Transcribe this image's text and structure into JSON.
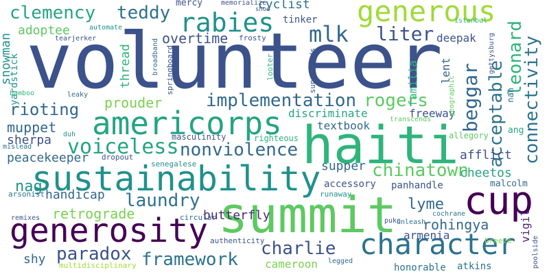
{
  "words": [
    {
      "text": "volunteer",
      "color": "#3b528b"
    },
    {
      "text": "haiti",
      "color": "#2fb47c"
    },
    {
      "text": "summit",
      "color": "#5ec962"
    },
    {
      "text": "sustainability",
      "color": "#21918c"
    },
    {
      "text": "cup",
      "color": "#440154"
    },
    {
      "text": "generosity",
      "color": "#440154"
    },
    {
      "text": "americorps",
      "color": "#26a484"
    },
    {
      "text": "character",
      "color": "#2c728e"
    },
    {
      "text": "generous",
      "color": "#a0da39"
    },
    {
      "text": "rabies",
      "color": "#21918c"
    },
    {
      "text": "mlk",
      "color": "#31688e"
    },
    {
      "text": "voiceless",
      "color": "#26a484"
    },
    {
      "text": "nonviolence",
      "color": "#31688e"
    },
    {
      "text": "liter",
      "color": "#3b528b"
    },
    {
      "text": "implementation",
      "color": "#31688e"
    },
    {
      "text": "rogers",
      "color": "#5ec962"
    },
    {
      "text": "beggar",
      "color": "#31688e"
    },
    {
      "text": "acceptable",
      "color": "#2c728e"
    },
    {
      "text": "leonard",
      "color": "#2fb47c"
    },
    {
      "text": "connectivity",
      "color": "#2c728e"
    },
    {
      "text": "chinatown",
      "color": "#5ec962"
    },
    {
      "text": "laundry",
      "color": "#2c728e"
    },
    {
      "text": "framework",
      "color": "#2c728e"
    },
    {
      "text": "paradox",
      "color": "#3b528b"
    },
    {
      "text": "charlie",
      "color": "#3b528b"
    },
    {
      "text": "clemency",
      "color": "#26a484"
    },
    {
      "text": "teddy",
      "color": "#2c728e"
    },
    {
      "text": "rioting",
      "color": "#31688e"
    },
    {
      "text": "lyme",
      "color": "#31688e"
    },
    {
      "text": "rohingya",
      "color": "#31688e"
    },
    {
      "text": "muppet",
      "color": "#31688e"
    },
    {
      "text": "overtime",
      "color": "#3b528b"
    },
    {
      "text": "nag",
      "color": "#21918c"
    },
    {
      "text": "retrograde",
      "color": "#7ad151"
    },
    {
      "text": "prouder",
      "color": "#7ad151"
    },
    {
      "text": "cheetos",
      "color": "#26a484"
    },
    {
      "text": "afflict",
      "color": "#3b528b"
    },
    {
      "text": "adoptee",
      "color": "#5ec962"
    },
    {
      "text": "cyclist",
      "color": "#2c728e"
    },
    {
      "text": "supper",
      "color": "#31688e"
    },
    {
      "text": "peacekeeper",
      "color": "#31688e"
    },
    {
      "text": "sherpa",
      "color": "#3b528b"
    },
    {
      "text": "butterfly",
      "color": "#482878"
    },
    {
      "text": "handicap",
      "color": "#31688e"
    },
    {
      "text": "shy",
      "color": "#31688e"
    },
    {
      "text": "armenia",
      "color": "#3b528b"
    },
    {
      "text": "snowman",
      "color": "#21918c"
    },
    {
      "text": "discriminate",
      "color": "#26a484"
    },
    {
      "text": "textbook",
      "color": "#31688e"
    },
    {
      "text": "freeway",
      "color": "#3b528b"
    },
    {
      "text": "deepak",
      "color": "#3b528b"
    },
    {
      "text": "thread",
      "color": "#2fb47c"
    },
    {
      "text": "lent",
      "color": "#31688e"
    },
    {
      "text": "familia",
      "color": "#2fb47c"
    },
    {
      "text": "accessory",
      "color": "#3b528b"
    },
    {
      "text": "panhandle",
      "color": "#3b528b"
    },
    {
      "text": "cameroon",
      "color": "#7ad151"
    },
    {
      "text": "vigil",
      "color": "#482878"
    },
    {
      "text": "honorable",
      "color": "#2c728e"
    },
    {
      "text": "atkins",
      "color": "#2c728e"
    },
    {
      "text": "malcolm",
      "color": "#31688e"
    },
    {
      "text": "ang",
      "color": "#26a484"
    },
    {
      "text": "tinker",
      "color": "#3b528b"
    },
    {
      "text": "mercy",
      "color": "#3b528b"
    },
    {
      "text": "yardstick",
      "color": "#21918c"
    },
    {
      "text": "nan",
      "color": "#31688e"
    },
    {
      "text": "masculinity",
      "color": "#3b528b"
    },
    {
      "text": "righteous",
      "color": "#2fb47c"
    },
    {
      "text": "dropout",
      "color": "#3b528b"
    },
    {
      "text": "allegory",
      "color": "#5ec962"
    },
    {
      "text": "senegalese",
      "color": "#21918c"
    },
    {
      "text": "authenticity",
      "color": "#3b528b"
    },
    {
      "text": "multidisciplinary",
      "color": "#a0da39"
    },
    {
      "text": "circular",
      "color": "#31688e"
    },
    {
      "text": "remixes",
      "color": "#3b528b"
    },
    {
      "text": "arsonist",
      "color": "#2c728e"
    },
    {
      "text": "runaway",
      "color": "#21918c"
    },
    {
      "text": "cochrane",
      "color": "#2c728e"
    },
    {
      "text": "puke",
      "color": "#3b528b"
    },
    {
      "text": "unleash",
      "color": "#2c728e"
    },
    {
      "text": "breeze",
      "color": "#7ad151"
    },
    {
      "text": "legged",
      "color": "#31688e"
    },
    {
      "text": "poolside",
      "color": "#3b528b"
    },
    {
      "text": "memorialize",
      "color": "#3b528b"
    },
    {
      "text": "shoo",
      "color": "#3b528b"
    },
    {
      "text": "istanbul",
      "color": "#2fb47c"
    },
    {
      "text": "frosty",
      "color": "#3b528b"
    },
    {
      "text": "automate",
      "color": "#21918c"
    },
    {
      "text": "tearjerker",
      "color": "#3b528b"
    },
    {
      "text": "broadband",
      "color": "#31688e"
    },
    {
      "text": "springboard",
      "color": "#3b528b"
    },
    {
      "text": "superfoods",
      "color": "#3b528b"
    },
    {
      "text": "looter",
      "color": "#2fb47c"
    },
    {
      "text": "geographic",
      "color": "#5ec962"
    },
    {
      "text": "gettysburg",
      "color": "#3b528b"
    },
    {
      "text": "bamboo",
      "color": "#2fb47c"
    },
    {
      "text": "leaky",
      "color": "#31688e"
    },
    {
      "text": "duh",
      "color": "#21918c"
    },
    {
      "text": "mislead",
      "color": "#2c728e"
    },
    {
      "text": "transcends",
      "color": "#5ec962"
    }
  ]
}
